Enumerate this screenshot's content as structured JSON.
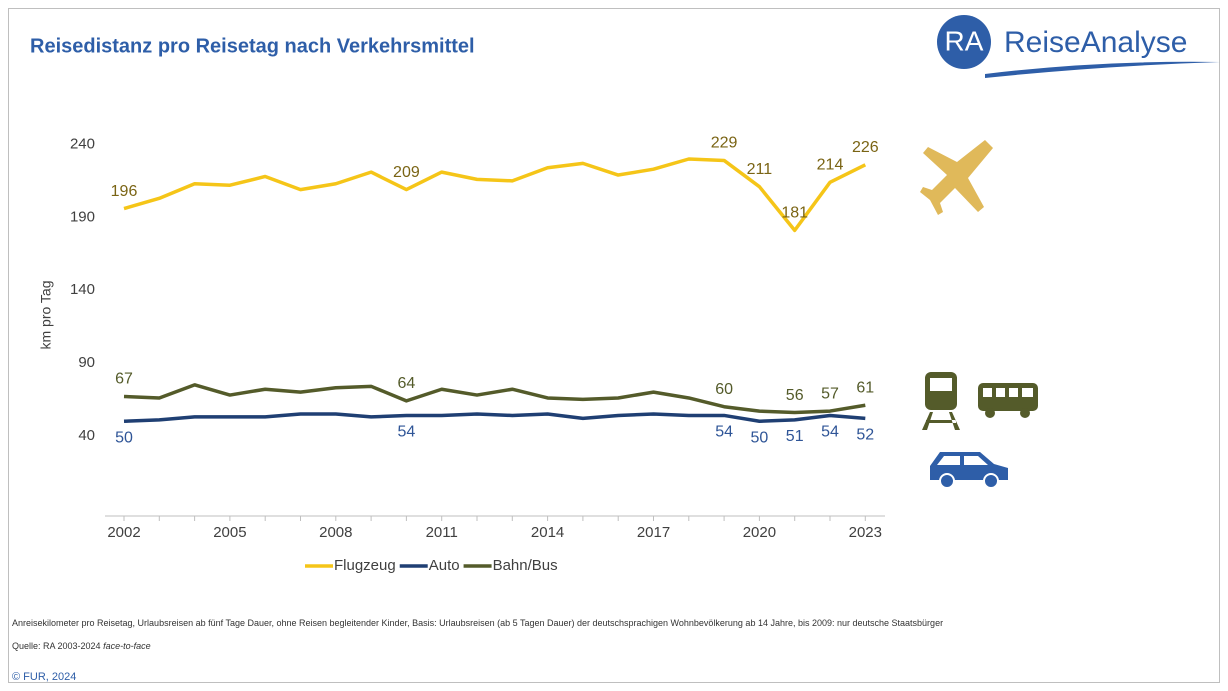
{
  "chart_data": {
    "type": "line",
    "title": "Reisedistanz pro Reisetag nach Verkehrsmittel",
    "y_label": "km pro Tag",
    "categories": [
      "2002",
      null,
      null,
      "2005",
      null,
      null,
      "2008",
      null,
      null,
      "2011",
      null,
      null,
      "2014",
      null,
      null,
      "2017",
      null,
      null,
      "2020",
      null,
      null,
      "2023"
    ],
    "ylim": [
      -15,
      265
    ],
    "yticks": [
      40,
      90,
      140,
      190,
      240
    ],
    "series": [
      {
        "name": "Flugzeug",
        "color": "#f5c518",
        "label_color": "#7a6414",
        "values": [
          196,
          203,
          213,
          212,
          218,
          209,
          213,
          221,
          209,
          221,
          216,
          215,
          224,
          227,
          219,
          223,
          230,
          229,
          211,
          181,
          214,
          226
        ],
        "value_labels": [
          "196",
          null,
          null,
          null,
          null,
          null,
          null,
          null,
          "209",
          null,
          null,
          null,
          null,
          null,
          null,
          null,
          null,
          "229",
          "211",
          "181",
          "214",
          "226"
        ]
      },
      {
        "name": "Auto",
        "color": "#1f3f73",
        "label_color": "#2f5597",
        "values": [
          50,
          51,
          53,
          53,
          53,
          55,
          55,
          53,
          54,
          54,
          55,
          54,
          55,
          52,
          54,
          55,
          54,
          54,
          50,
          51,
          54,
          52
        ],
        "value_labels": [
          "50",
          null,
          null,
          null,
          null,
          null,
          null,
          null,
          "54",
          null,
          null,
          null,
          null,
          null,
          null,
          null,
          null,
          "54",
          "50",
          "51",
          "54",
          "52"
        ]
      },
      {
        "name": "Bahn/Bus",
        "color": "#545b2a",
        "label_color": "#545b2a",
        "values": [
          67,
          66,
          75,
          68,
          72,
          70,
          73,
          74,
          64,
          72,
          68,
          72,
          66,
          65,
          66,
          70,
          66,
          60,
          57,
          56,
          57,
          61
        ],
        "value_labels": [
          "67",
          null,
          null,
          null,
          null,
          null,
          null,
          null,
          "64",
          null,
          null,
          null,
          null,
          null,
          null,
          null,
          null,
          "60",
          null,
          "56",
          "57",
          "61"
        ]
      }
    ],
    "legend": "bottom"
  },
  "logo": {
    "initials": "RA",
    "name": "ReiseAnalyse"
  },
  "footnote": {
    "text": "Anreisekilometer pro Reisetag, Urlaubsreisen ab fünf Tage Dauer, ohne Reisen begleitender Kinder, Basis: Urlaubsreisen (ab 5 Tagen Dauer) der deutschsprachigen Wohnbevölkerung ab 14 Jahre, bis 2009: nur deutsche Staatsbürger",
    "source": "Quelle: RA 2003-2024 ",
    "method": "face-to-face",
    "copyright": "© FUR, 2024"
  }
}
